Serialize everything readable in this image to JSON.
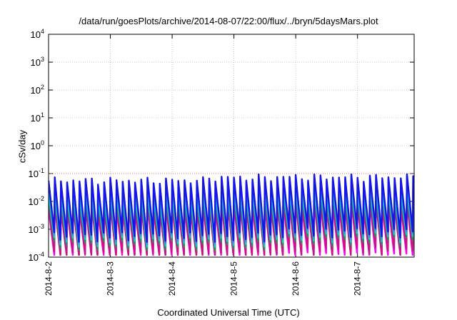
{
  "chart_data": {
    "type": "line",
    "title": "/data/run/goesPlots/archive/2014-08-07/22:00/flux/../bryn/5daysMars.plot",
    "xlabel": "Coordinated Universal Time (UTC)",
    "ylabel": "cSv/day",
    "y_scale": "log",
    "ylim": [
      0.0001,
      10000
    ],
    "xlim": [
      "2014-08-02T00:00",
      "2014-08-07T22:00"
    ],
    "grid": true,
    "x_ticks": [
      "2014-8-2",
      "2014-8-3",
      "2014-8-4",
      "2014-8-5",
      "2014-8-6",
      "2014-8-7"
    ],
    "y_ticks": [
      {
        "value": 0.0001,
        "base": "10",
        "exp": "-4"
      },
      {
        "value": 0.001,
        "base": "10",
        "exp": "-3"
      },
      {
        "value": 0.01,
        "base": "10",
        "exp": "-2"
      },
      {
        "value": 0.1,
        "base": "10",
        "exp": "-1"
      },
      {
        "value": 1,
        "base": "10",
        "exp": "0"
      },
      {
        "value": 10,
        "base": "10",
        "exp": "1"
      },
      {
        "value": 100,
        "base": "10",
        "exp": "2"
      },
      {
        "value": 1000,
        "base": "10",
        "exp": "3"
      },
      {
        "value": 10000,
        "base": "10",
        "exp": "4"
      }
    ],
    "reference_lines": [
      {
        "value": 0.1,
        "color": "#ff6b6b",
        "style": "dotted"
      }
    ],
    "sawtooth_period_hours": 2.4,
    "segments": [
      {
        "start": "2014-08-02T00:00",
        "end": "2014-08-04T14:00",
        "hi_max": 0.075,
        "lo_min": 0.0007
      },
      {
        "start": "2014-08-04T14:00",
        "end": "2014-08-05T16:00",
        "hi_max": 0.095,
        "lo_min": 0.0007
      },
      {
        "start": "2014-08-05T16:00",
        "end": "2014-08-07T22:00",
        "hi_max": 0.1,
        "lo_min": 0.001
      }
    ],
    "series": [
      {
        "color": "#1515e6",
        "hi_factor": 1.0,
        "lo_factor": 0.06
      },
      {
        "color": "#3d8fdc",
        "hi_factor": 0.85,
        "lo_factor": 0.05
      },
      {
        "color": "#13c9c9",
        "hi_factor": 0.35,
        "lo_factor": 0.04
      },
      {
        "color": "#2e8b57",
        "hi_factor": 0.22,
        "lo_factor": 0.03
      },
      {
        "color": "#c71585",
        "hi_factor": 0.12,
        "lo_factor": 0.012
      },
      {
        "color": "#ff00ff",
        "hi_factor": 0.1,
        "lo_factor": 0.008
      },
      {
        "color": "#b22222",
        "hi_factor": 0.18,
        "lo_factor": 0.02
      }
    ]
  }
}
